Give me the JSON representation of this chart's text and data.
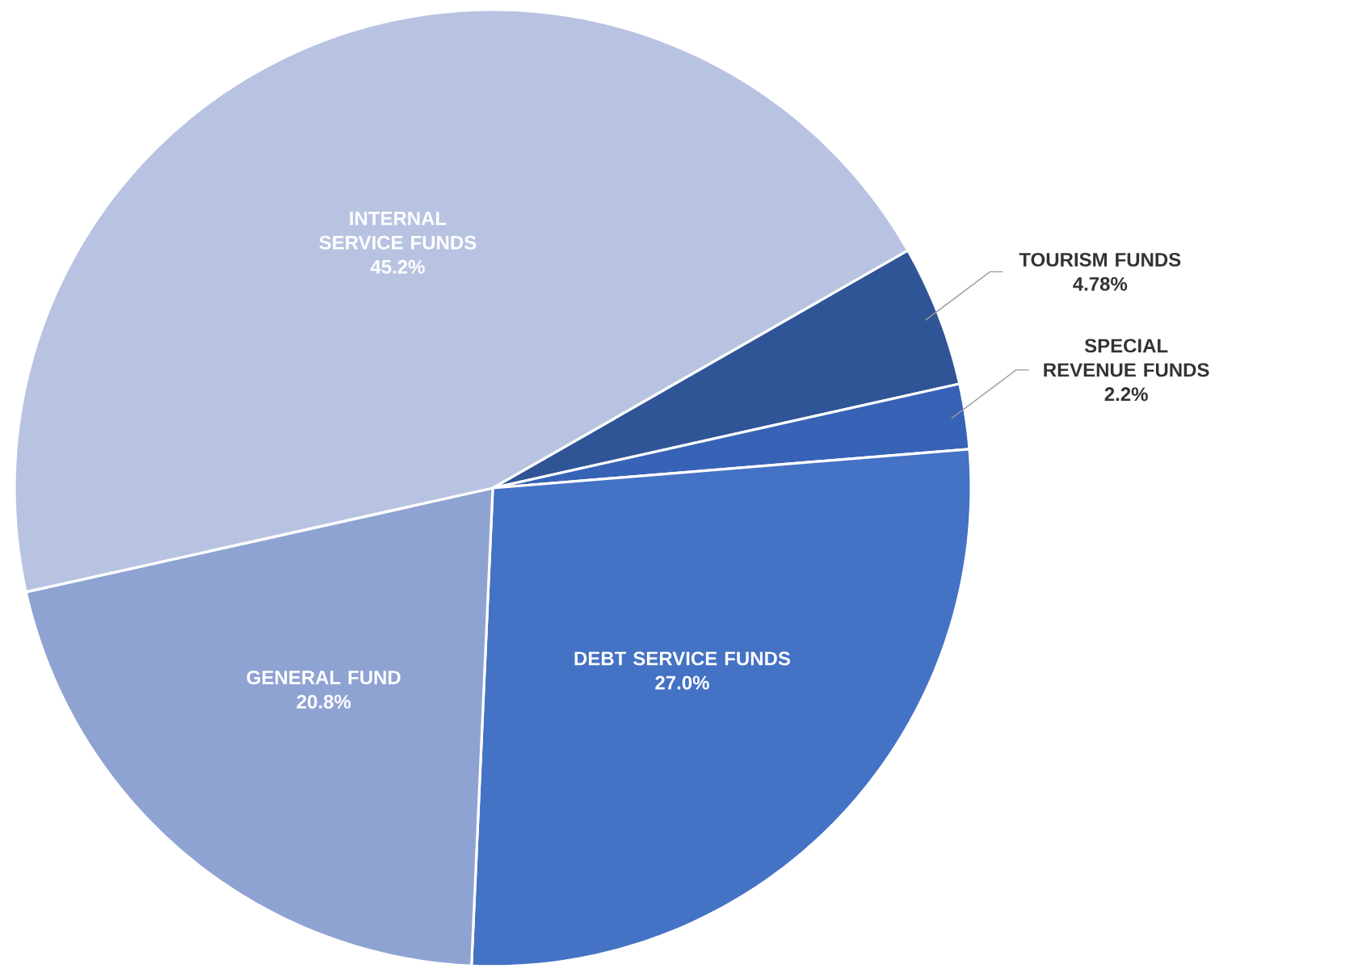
{
  "chart_data": {
    "type": "pie",
    "categories": [
      "TOURISM FUNDS",
      "SPECIAL REVENUE FUNDS",
      "DEBT SERVICE FUNDS",
      "GENERAL FUND",
      "INTERNAL SERVICE FUNDS"
    ],
    "values": [
      4.78,
      2.2,
      27.0,
      20.8,
      45.2
    ],
    "value_labels": [
      "4.78%",
      "2.2%",
      "27.0%",
      "20.8%",
      "45.2%"
    ],
    "colors": [
      "#2f5597",
      "#3763b6",
      "#4472c4",
      "#8fa3d3",
      "#b8c3e2"
    ]
  }
}
